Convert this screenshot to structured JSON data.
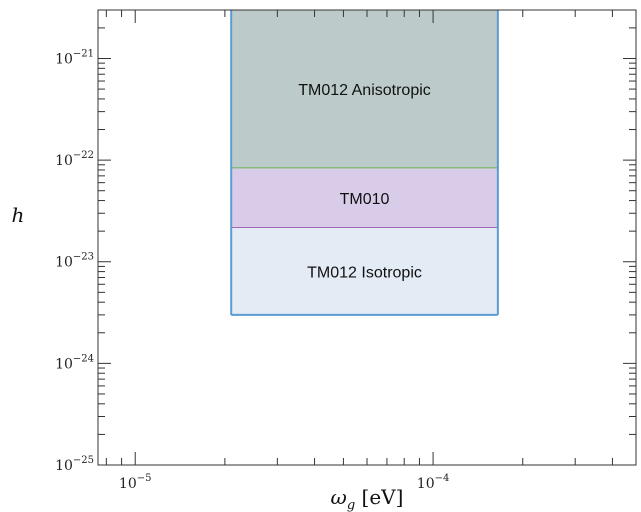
{
  "chart_data": {
    "type": "area",
    "xscale": "log",
    "yscale": "log",
    "xlim": [
      7.5e-06,
      0.00048
    ],
    "ylim": [
      1e-25,
      3e-21
    ],
    "xlabel": {
      "main": "ω",
      "sub": "g",
      "unit": " [eV]"
    },
    "ylabel": "h",
    "grid": false,
    "xticks": [
      {
        "value": 1e-05,
        "mantissa": "10",
        "exp": "−5"
      },
      {
        "value": 0.0001,
        "mantissa": "10",
        "exp": "−4"
      }
    ],
    "yticks": [
      {
        "value": 1e-25,
        "mantissa": "10",
        "exp": "−25"
      },
      {
        "value": 1e-24,
        "mantissa": "10",
        "exp": "−24"
      },
      {
        "value": 1e-23,
        "mantissa": "10",
        "exp": "−23"
      },
      {
        "value": 1e-22,
        "mantissa": "10",
        "exp": "−22"
      },
      {
        "value": 1e-21,
        "mantissa": "10",
        "exp": "−21"
      }
    ],
    "regions": [
      {
        "name": "TM012 Anisotropic",
        "x": [
          2.1e-05,
          0.000165
        ],
        "y": [
          8.3e-23,
          3e-21
        ],
        "fill": "#bccbca",
        "stroke": "#6ab04c"
      },
      {
        "name": "TM010",
        "x": [
          2.1e-05,
          0.000165
        ],
        "y": [
          2.15e-23,
          8.3e-23
        ],
        "fill": "#d9cce8",
        "stroke": "#a25fb5"
      },
      {
        "name": "TM012 Isotropic",
        "x": [
          2.1e-05,
          0.000165
        ],
        "y": [
          3e-24,
          2.15e-23
        ],
        "fill": "#e3ebf5",
        "stroke": "#5b9bd5"
      }
    ],
    "border_color": "#5b9bd5"
  }
}
